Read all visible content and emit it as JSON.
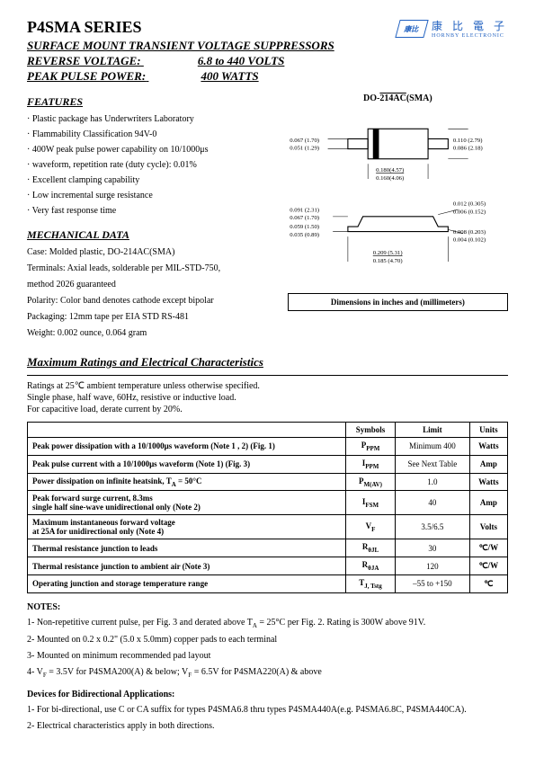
{
  "header": {
    "series": "P4SMA SERIES",
    "subtitle": "SURFACE MOUNT TRANSIENT VOLTAGE SUPPRESSORS",
    "reverse_label": "REVERSE VOLTAGE:",
    "reverse_val": "6.8 to 440 VOLTS",
    "power_label": "PEAK PULSE POWER:",
    "power_val": "400 WATTS",
    "logo_text": "康 比 電 子",
    "logo_sub": "HORNBY ELECTRONIC",
    "logo_mark": "康比"
  },
  "features": {
    "title": "FEATURES",
    "items": [
      "Plastic package has Underwriters Laboratory",
      "Flammability Classification 94V-0",
      "400W peak pulse power capability on 10/1000μs",
      "waveform, repetition rate (duty cycle): 0.01%",
      "Excellent clamping capability",
      "Low incremental surge resistance",
      "Very fast response time"
    ]
  },
  "mech": {
    "title": "MECHANICAL DATA",
    "lines": [
      "Case: Molded plastic, DO-214AC(SMA)",
      "Terminals: Axial leads, solderable per MIL-STD-750,",
      "method 2026 guaranteed",
      "Polarity: Color band denotes cathode except bipolar",
      "Packaging: 12mm tape per EIA STD RS-481",
      "Weight: 0.002 ounce, 0.064 gram"
    ]
  },
  "package": {
    "label_prefix": "DO-",
    "label_ol": "214AC",
    "label_suffix": "(SMA)",
    "dims_top": {
      "a": "0.067 (1.70)",
      "a2": "0.051 (1.29)",
      "b": "0.110 (2.79)",
      "b2": "0.086 (2.18)",
      "c": "0.180(4.57)",
      "c2": "0.160(4.06)"
    },
    "dims_side": {
      "d": "0.091 (2.31)",
      "d2": "0.067 (1.70)",
      "e": "0.059 (1.50)",
      "e2": "0.035 (0.89)",
      "f": "0.012 (0.305)",
      "f2": "0.006 (0.152)",
      "g": "0.008 (0.203)",
      "g2": "0.004 (0.102)",
      "h": "0.209 (5.31)",
      "h2": "0.185 (4.70)"
    },
    "dim_note": "Dimensions in inches and (millimeters)"
  },
  "maxratings": {
    "title": "Maximum Ratings and Electrical Characteristics",
    "intro": [
      "Ratings at 25℃ ambient temperature unless otherwise specified.",
      "Single phase, half wave, 60Hz, resistive or inductive load.",
      "For capacitive load, derate current by 20%."
    ],
    "headers": [
      "",
      "Symbols",
      "Limit",
      "Units"
    ],
    "rows": [
      {
        "p": "Peak power dissipation with a 10/1000μs waveform (Note 1 , 2) (Fig. 1)",
        "s": "P",
        "sub": "PPM",
        "l": "Minimum 400",
        "u": "Watts"
      },
      {
        "p": "Peak pulse current with a 10/1000μs waveform (Note 1) (Fig. 3)",
        "s": "I",
        "sub": "PPM",
        "l": "See Next Table",
        "u": "Amp"
      },
      {
        "p": "Power dissipation on infinite heatsink, T<sub>A</sub> = 50°C",
        "s": "P",
        "sub": "M(AV)",
        "l": "1.0",
        "u": "Watts"
      },
      {
        "p": "Peak forward surge current, 8.3ms<br>single half sine-wave unidirectional only (Note 2)",
        "s": "I",
        "sub": "FSM",
        "l": "40",
        "u": "Amp"
      },
      {
        "p": "Maximum instantaneous forward voltage<br>at 25A for unidirectional only (Note 4)",
        "s": "V",
        "sub": "F",
        "l": "3.5/6.5",
        "u": "Volts"
      },
      {
        "p": "Thermal resistance junction to leads",
        "s": "R",
        "sub": "θJL",
        "l": "30",
        "u": "℃/W"
      },
      {
        "p": "Thermal resistance junction to ambient air (Note 3)",
        "s": "R",
        "sub": "θJA",
        "l": "120",
        "u": "℃/W"
      },
      {
        "p": "Operating junction and storage temperature range",
        "s": "T",
        "sub": "J, Tstg",
        "l": "–55 to +150",
        "u": "℃"
      }
    ]
  },
  "notes": {
    "title": "NOTES:",
    "items": [
      "1- Non-repetitive current pulse, per Fig. 3 and derated above T<sub>A</sub> = 25°C per Fig. 2. Rating is 300W above 91V.",
      "2- Mounted on 0.2 x 0.2\" (5.0 x 5.0mm) copper pads to each terminal",
      "3- Mounted on minimum recommended pad layout",
      "4- V<sub>F</sub> = 3.5V for P4SMA200(A) & below; V<sub>F</sub> = 6.5V for P4SMA220(A) & above"
    ]
  },
  "devices": {
    "title": "Devices for Bidirectional Applications:",
    "items": [
      "1- For bi-directional, use C or CA suffix for types P4SMA6.8 thru types P4SMA440A(e.g. P4SMA6.8C, P4SMA440CA).",
      "2- Electrical characteristics apply in both directions."
    ]
  },
  "colors": {
    "text": "#000000",
    "logo": "#2060c0"
  }
}
